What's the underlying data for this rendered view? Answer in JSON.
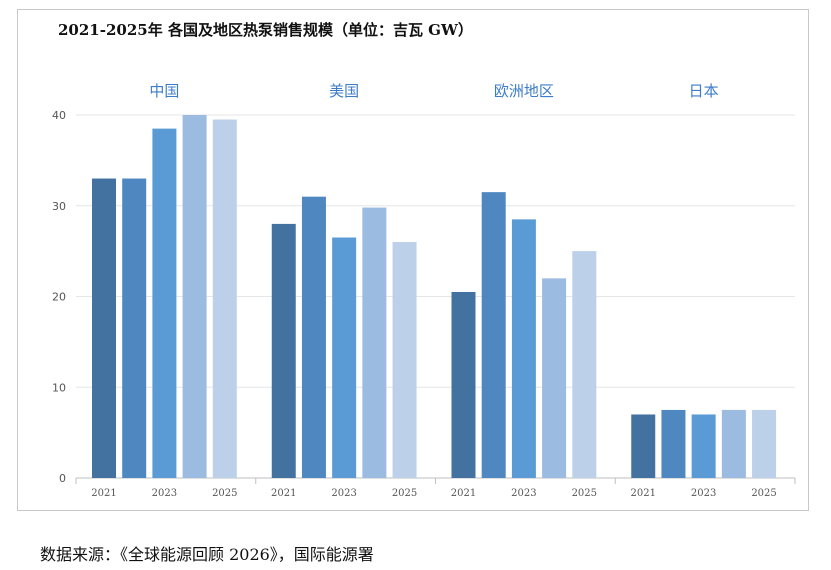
{
  "chart_data": {
    "type": "bar",
    "title": "2021-2025年 各国及地区热泵销售规模（单位：吉瓦 GW）",
    "groups": [
      "中国",
      "美国",
      "欧洲地区",
      "日本"
    ],
    "x_tick_labels": [
      "2021",
      "2023",
      "2025"
    ],
    "years": [
      "2021",
      "2022",
      "2023",
      "2024",
      "2025"
    ],
    "values": [
      [
        33,
        33,
        38.5,
        40,
        39.5
      ],
      [
        28,
        31,
        26.5,
        29.8,
        26
      ],
      [
        20.5,
        31.5,
        28.5,
        22,
        25
      ],
      [
        7,
        7.5,
        7,
        7.5,
        7.5
      ]
    ],
    "ylim": [
      0,
      40
    ],
    "yticks": [
      0,
      10,
      20,
      30,
      40
    ],
    "grid": true,
    "colors": [
      "#4472a0",
      "#4f88c0",
      "#5b9bd5",
      "#9bbbe0",
      "#bdd0ea"
    ],
    "group_label_color": "#3d7cc9"
  },
  "source_note": "数据来源：《全球能源回顾 2026》，国际能源署"
}
